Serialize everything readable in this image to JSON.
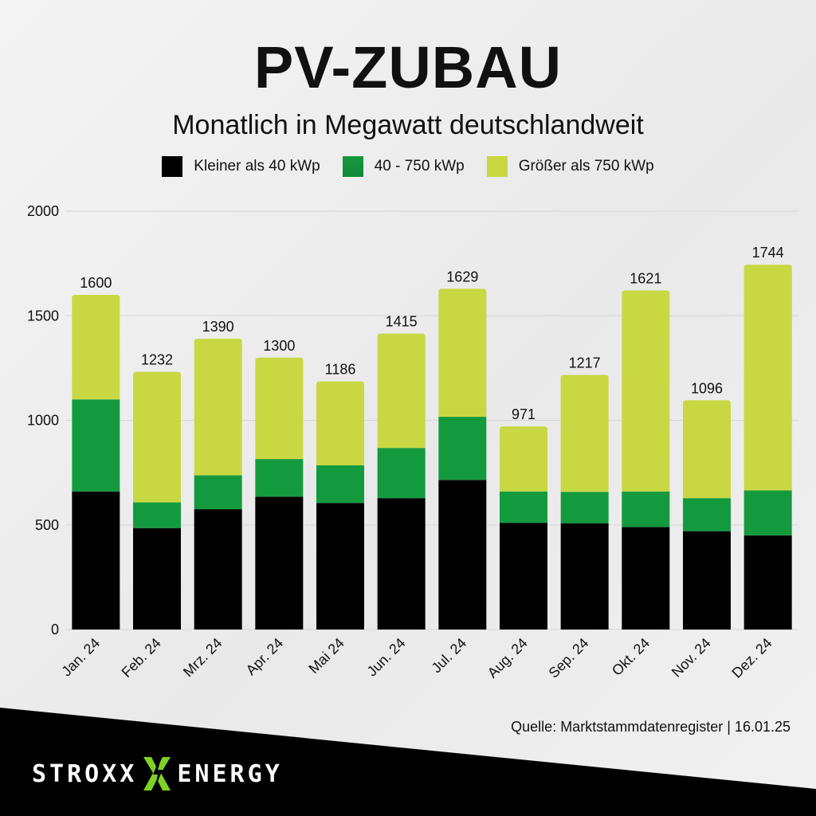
{
  "title": "PV-ZUBAU",
  "subtitle": "Monatlich in Megawatt deutschlandweit",
  "source": "Quelle: Marktstammdatenregister | 16.01.25",
  "brand": {
    "left": "STROXX",
    "right": "ENERGY",
    "mark_icon": "lightning-x-icon"
  },
  "colors": {
    "small": "#000000",
    "medium": "#149a3e",
    "large": "#c8d843",
    "brand_accent": "#7fd126"
  },
  "legend": [
    {
      "label": "Kleiner als 40 kWp",
      "color": "#000000"
    },
    {
      "label": "40 - 750 kWp",
      "color": "#149a3e"
    },
    {
      "label": "Größer als 750 kWp",
      "color": "#c8d843"
    }
  ],
  "chart_data": {
    "type": "bar",
    "stacked": true,
    "title": "PV-ZUBAU",
    "subtitle": "Monatlich in Megawatt deutschlandweit",
    "categories": [
      "Jan. 24",
      "Feb. 24",
      "Mrz. 24",
      "Apr. 24",
      "Mai 24",
      "Jun. 24",
      "Jul. 24",
      "Aug. 24",
      "Sep. 24",
      "Okt. 24",
      "Nov. 24",
      "Dez. 24"
    ],
    "series": [
      {
        "name": "Kleiner als 40 kWp",
        "color": "#000000",
        "values": [
          660,
          485,
          575,
          635,
          605,
          628,
          715,
          510,
          508,
          490,
          470,
          450
        ]
      },
      {
        "name": "40 - 750 kWp",
        "color": "#149a3e",
        "values": [
          440,
          123,
          162,
          180,
          180,
          240,
          302,
          150,
          150,
          170,
          158,
          215
        ]
      },
      {
        "name": "Größer als 750 kWp",
        "color": "#c8d843",
        "values": [
          500,
          624,
          653,
          485,
          401,
          547,
          612,
          311,
          559,
          961,
          468,
          1079
        ]
      }
    ],
    "totals": [
      1600,
      1232,
      1390,
      1300,
      1186,
      1415,
      1629,
      971,
      1217,
      1621,
      1096,
      1744
    ],
    "yticks": [
      0,
      500,
      1000,
      1500,
      2000
    ],
    "ylim": [
      0,
      2000
    ],
    "grid": true,
    "legend_position": "top"
  }
}
